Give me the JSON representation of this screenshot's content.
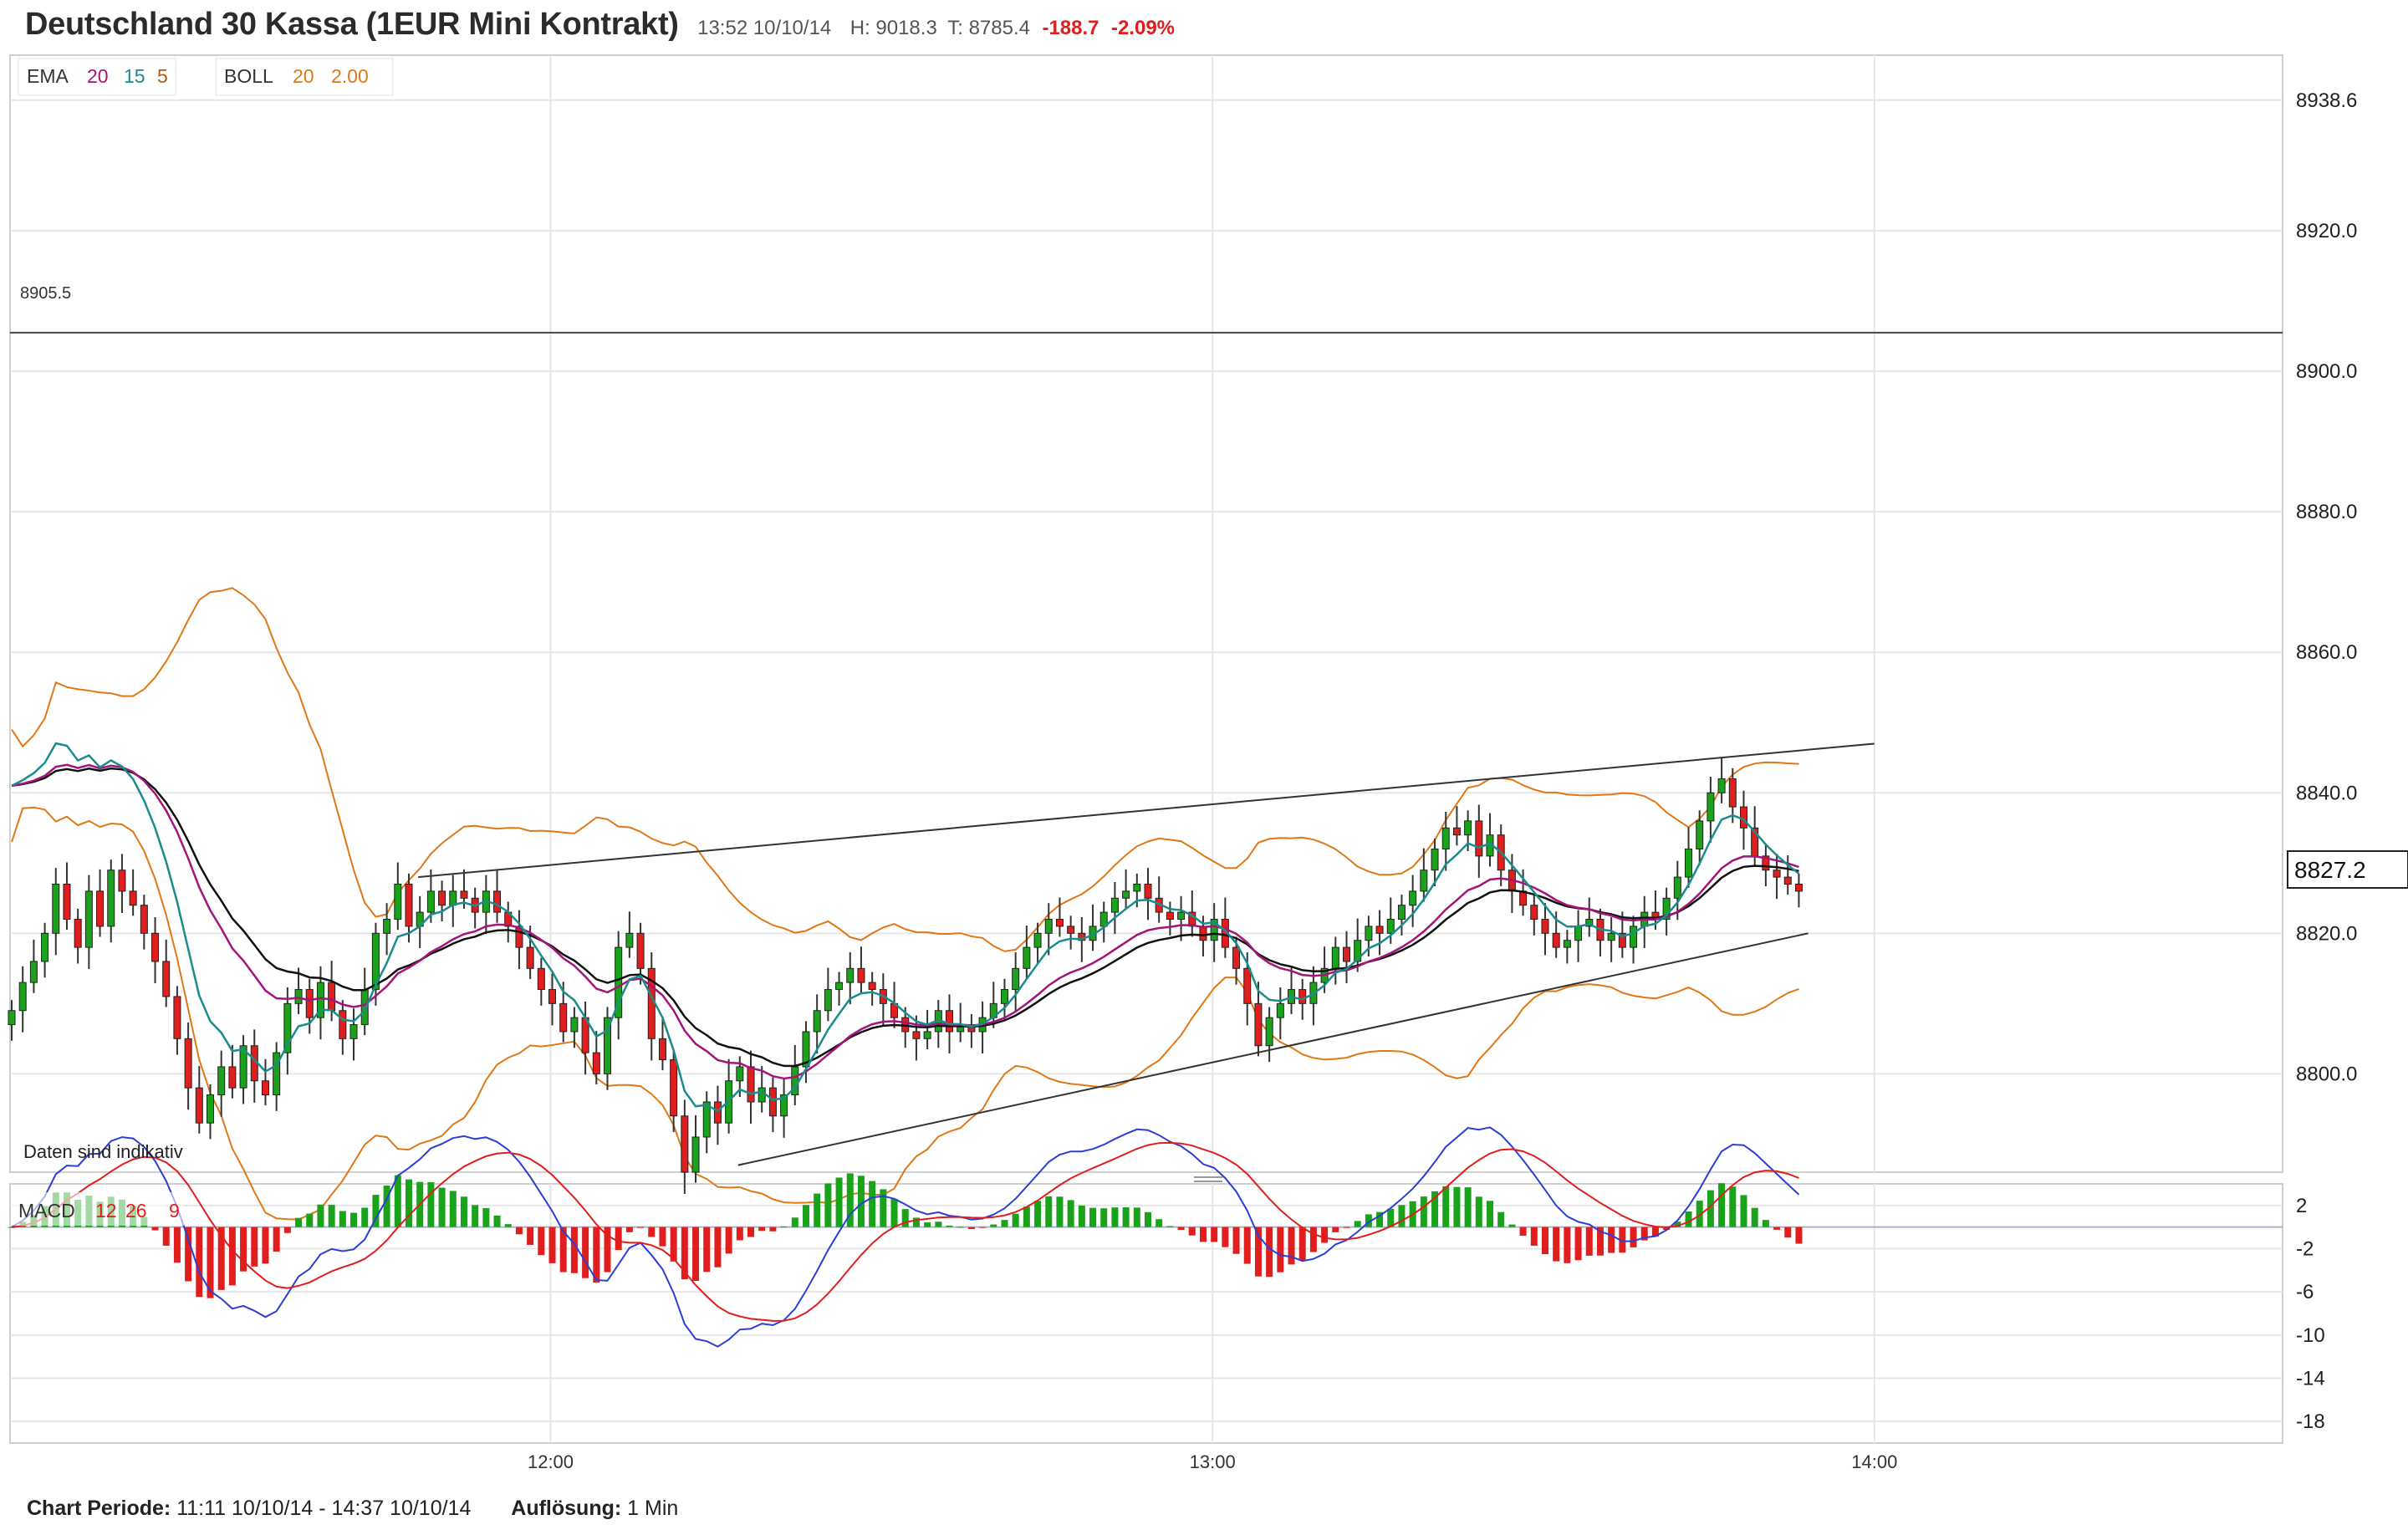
{
  "header": {
    "title": "Deutschland 30 Kassa (1EUR Mini Kontrakt)",
    "datetime": "13:52 10/10/14",
    "high": "H: 9018.3",
    "low": "T: 8785.4",
    "change": "-188.7",
    "change_pct": "-2.09%"
  },
  "legend": {
    "ema_label": "EMA",
    "ema_p1": "20",
    "ema_p2": "15",
    "ema_p3": "5",
    "boll_label": "BOLL",
    "boll_p1": "20",
    "boll_p2": "2.00",
    "macd_label": "MACD",
    "macd_p1": "12",
    "macd_p2": "26",
    "macd_p3": "9"
  },
  "annotations": {
    "hline_label": "8905.5",
    "disclaimer": "Daten sind indikativ",
    "last_price": "8827.2"
  },
  "footer": {
    "period_label": "Chart Periode:",
    "period_value": "11:11 10/10/14 - 14:37 10/10/14",
    "resolution_label": "Auflösung:",
    "resolution_value": "1 Min"
  },
  "colors": {
    "up": "#1aa31a",
    "down": "#e01e1e",
    "ema20": "#111111",
    "ema15": "#a4147a",
    "ema5": "#1a8c8c",
    "boll": "#e07818",
    "macd_line": "#2b3fd6",
    "signal_line": "#e01e1e",
    "grid": "#e6e6e6",
    "trendline": "#333333"
  },
  "chart_data": {
    "type": "candlestick",
    "time_axis": {
      "labels": [
        "12:00",
        "13:00",
        "14:00"
      ],
      "start": "11:11",
      "end": "14:37",
      "resolution": "1 Min"
    },
    "price_axis": {
      "ticks": [
        8800.0,
        8820.0,
        8840.0,
        8860.0,
        8880.0,
        8900.0,
        8920.0,
        8938.6
      ],
      "range": [
        8786,
        8945
      ]
    },
    "macd_axis": {
      "ticks": [
        2,
        -2,
        -6,
        -10,
        -14,
        -18
      ],
      "range": [
        -20,
        4
      ]
    },
    "horizontal_line": 8905.5,
    "last_price": 8827.2,
    "series_closes": [
      8809,
      8813,
      8816,
      8820,
      8827,
      8822,
      8818,
      8826,
      8821,
      8829,
      8826,
      8824,
      8820,
      8816,
      8811,
      8805,
      8798,
      8793,
      8797,
      8801,
      8798,
      8804,
      8799,
      8797,
      8803,
      8810,
      8812,
      8808,
      8813,
      8809,
      8805,
      8807,
      8812,
      8820,
      8822,
      8827,
      8821,
      8823,
      8826,
      8824,
      8826,
      8825,
      8823,
      8826,
      8823,
      8821,
      8818,
      8815,
      8812,
      8810,
      8806,
      8808,
      8803,
      8800,
      8808,
      8818,
      8820,
      8815,
      8805,
      8802,
      8794,
      8786,
      8791,
      8796,
      8793,
      8799,
      8801,
      8796,
      8798,
      8794,
      8797,
      8801,
      8806,
      8809,
      8812,
      8813,
      8815,
      8813,
      8812,
      8810,
      8808,
      8806,
      8805,
      8806,
      8809,
      8806,
      8807,
      8806,
      8808,
      8810,
      8812,
      8815,
      8818,
      8820,
      8822,
      8821,
      8820,
      8819,
      8821,
      8823,
      8825,
      8826,
      8827,
      8825,
      8823,
      8822,
      8823,
      8821,
      8819,
      8822,
      8818,
      8815,
      8810,
      8804,
      8808,
      8810,
      8812,
      8810,
      8813,
      8815,
      8818,
      8816,
      8819,
      8821,
      8820,
      8822,
      8824,
      8826,
      8829,
      8832,
      8835,
      8834,
      8836,
      8831,
      8834,
      8829,
      8826,
      8824,
      8822,
      8820,
      8818,
      8819,
      8821,
      8822,
      8819,
      8820,
      8818,
      8821,
      8823,
      8822,
      8825,
      8828,
      8832,
      8836,
      8840,
      8842,
      8838,
      8835,
      8831,
      8829,
      8828,
      8827,
      8826
    ],
    "bollinger": {
      "period": 20,
      "stddev": 2.0
    },
    "ema_periods": [
      20,
      15,
      5
    ],
    "macd_params": [
      12,
      26,
      9
    ],
    "trendlines": [
      {
        "from": [
          "11:48",
          8828
        ],
        "to": [
          "14:00",
          8847
        ]
      },
      {
        "from": [
          "12:17",
          8787
        ],
        "to": [
          "13:54",
          8820
        ]
      }
    ]
  }
}
